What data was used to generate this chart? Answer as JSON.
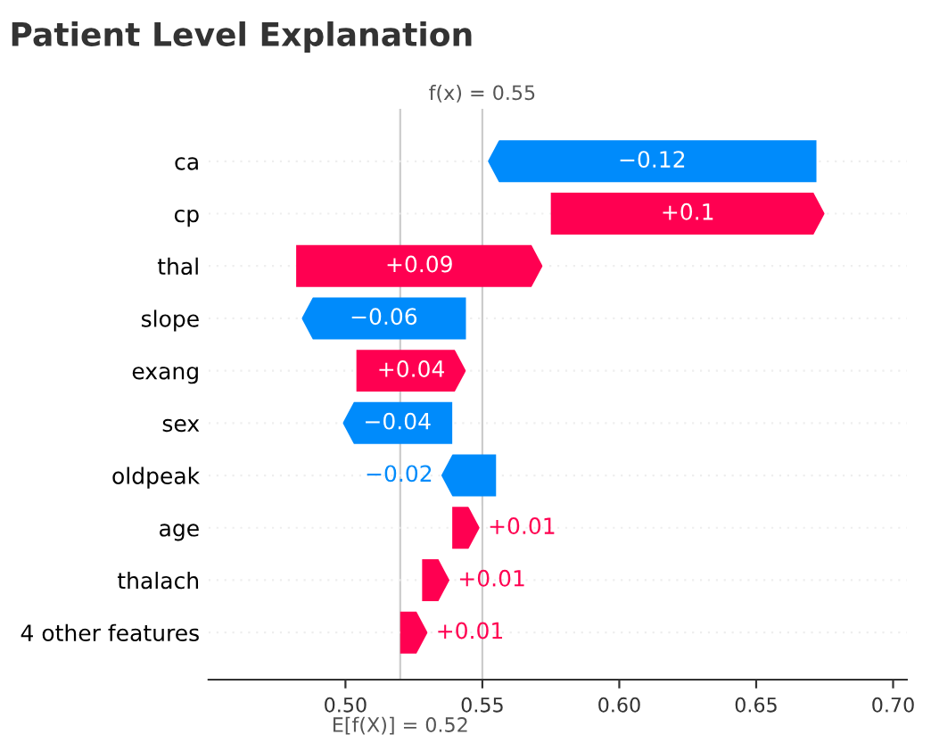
{
  "chart_data": {
    "type": "bar",
    "orientation": "horizontal",
    "title": "Patient Level Explanation",
    "categories": [
      "ca",
      "cp",
      "thal",
      "slope",
      "exang",
      "sex",
      "oldpeak",
      "age",
      "thalach",
      "4 other features"
    ],
    "values": [
      -0.12,
      0.1,
      0.09,
      -0.06,
      0.04,
      -0.04,
      -0.02,
      0.01,
      0.01,
      0.01
    ],
    "base": [
      0.672,
      0.575,
      0.482,
      0.544,
      0.504,
      0.539,
      0.555,
      0.539,
      0.528,
      0.52
    ],
    "value_labels": [
      "−0.12",
      "+0.1",
      "+0.09",
      "−0.06",
      "+0.04",
      "−0.04",
      "−0.02",
      "+0.01",
      "+0.01",
      "+0.01"
    ],
    "colors": [
      "#008bfb",
      "#ff0051",
      "#ff0051",
      "#008bfb",
      "#ff0051",
      "#008bfb",
      "#008bfb",
      "#ff0051",
      "#ff0051",
      "#ff0051"
    ],
    "xlim": [
      0.45,
      0.705
    ],
    "xticks": [
      {
        "value": 0.5,
        "label": "0.50"
      },
      0.55,
      {
        "value": 0.6,
        "label": "0.60"
      },
      0.65,
      {
        "value": 0.7,
        "label": "0.70"
      }
    ],
    "grid": "y",
    "ref_lines": [
      {
        "axis": "x",
        "value": 0.52,
        "label": "E[f(X)] = 0.52",
        "color": "#cccccc"
      },
      {
        "axis": "x",
        "value": 0.55,
        "label": "f(x) = 0.55",
        "color": "#cccccc"
      }
    ]
  }
}
